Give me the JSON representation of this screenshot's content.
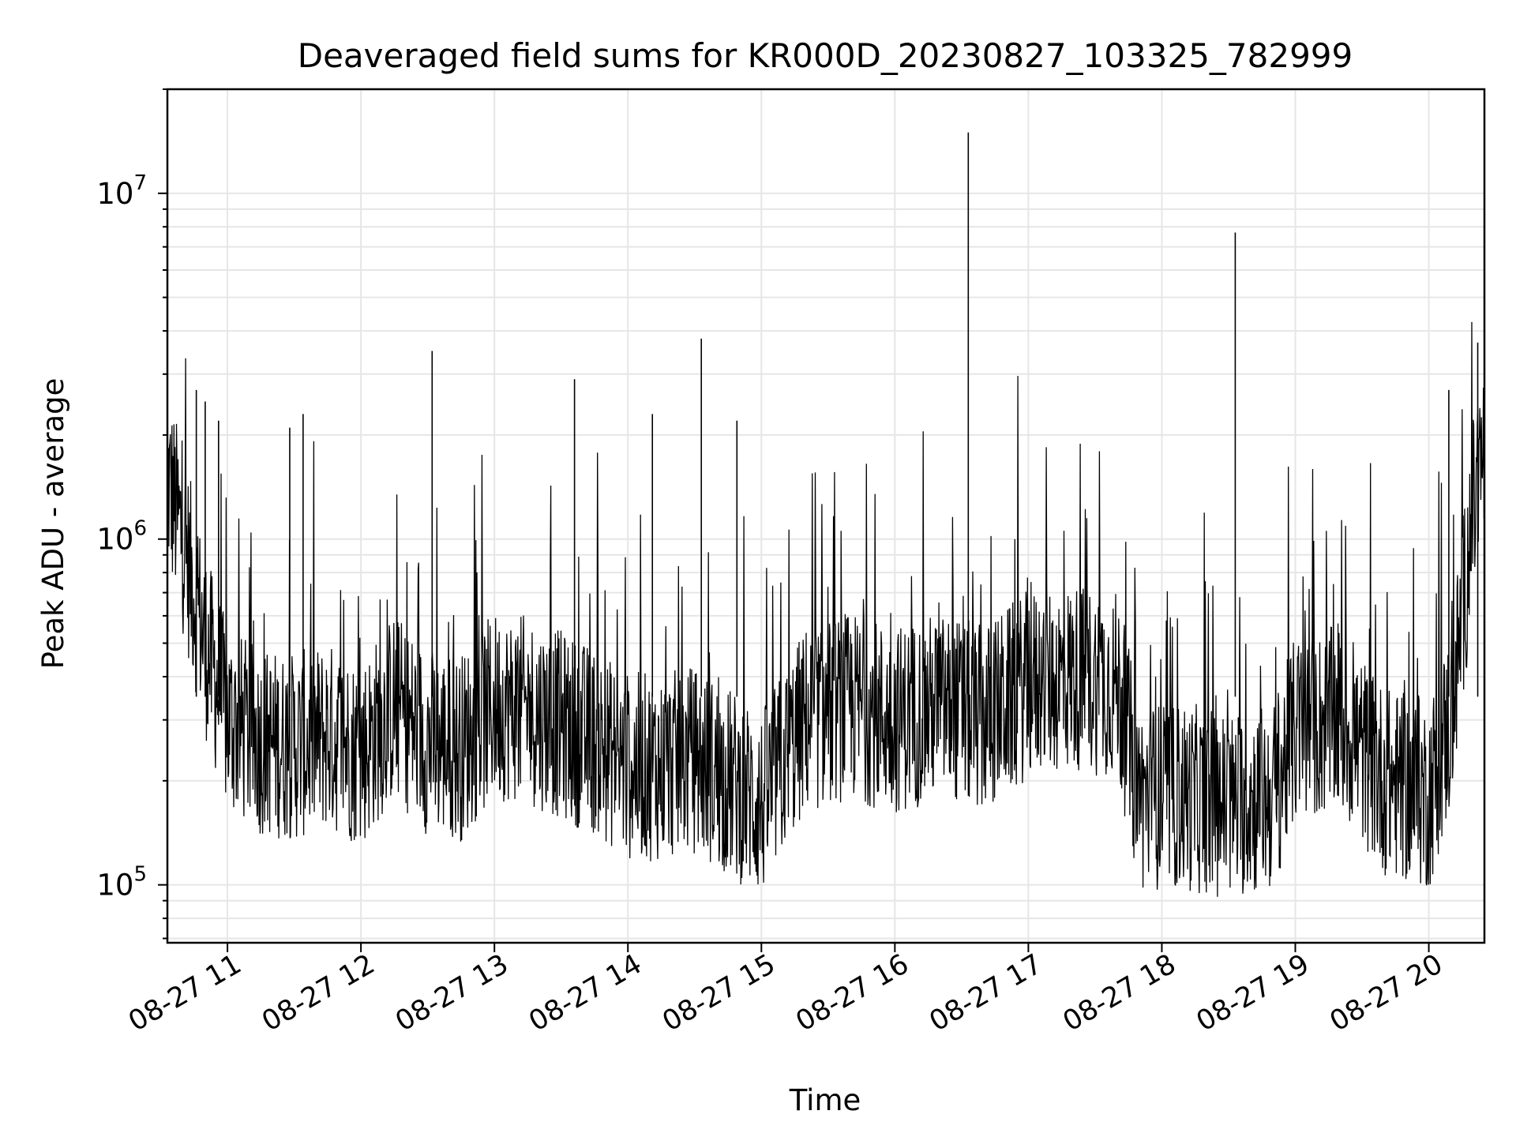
{
  "chart_data": {
    "type": "line",
    "title": "Deaveraged field sums for KR000D_20230827_103325_782999",
    "xlabel": "Time",
    "ylabel": "Peak ADU - average",
    "yscale": "log",
    "ylim": [
      68000,
      20000000
    ],
    "xlim": [
      "2023-08-27 10:33",
      "2023-08-27 20:25"
    ],
    "grid": true,
    "line_color": "#000000",
    "grid_color": "#e6e6e6",
    "x_ticks": [
      "2023-08-27 11:00",
      "2023-08-27 12:00",
      "2023-08-27 13:00",
      "2023-08-27 14:00",
      "2023-08-27 15:00",
      "2023-08-27 16:00",
      "2023-08-27 17:00",
      "2023-08-27 18:00",
      "2023-08-27 19:00",
      "2023-08-27 20:00"
    ],
    "x_tick_labels": [
      "08-27 11",
      "08-27 12",
      "08-27 13",
      "08-27 14",
      "08-27 15",
      "08-27 16",
      "08-27 17",
      "08-27 18",
      "08-27 19",
      "08-27 20"
    ],
    "y_ticks": [
      100000,
      1000000,
      10000000
    ],
    "y_tick_labels": [
      {
        "base": "10",
        "exp": "5"
      },
      {
        "base": "10",
        "exp": "6"
      },
      {
        "base": "10",
        "exp": "7"
      }
    ],
    "series": [
      {
        "x": [
          "2023-08-27 10:33",
          "2023-08-27 10:40",
          "2023-08-27 10:50",
          "2023-08-27 11:00",
          "2023-08-27 11:15",
          "2023-08-27 11:30",
          "2023-08-27 11:45",
          "2023-08-27 12:00",
          "2023-08-27 12:15",
          "2023-08-27 12:30",
          "2023-08-27 12:45",
          "2023-08-27 13:00",
          "2023-08-27 13:15",
          "2023-08-27 13:30",
          "2023-08-27 13:45",
          "2023-08-27 14:00",
          "2023-08-27 14:15",
          "2023-08-27 14:30",
          "2023-08-27 14:45",
          "2023-08-27 15:00",
          "2023-08-27 15:20",
          "2023-08-27 15:40",
          "2023-08-27 16:00",
          "2023-08-27 16:20",
          "2023-08-27 16:40",
          "2023-08-27 17:00",
          "2023-08-27 17:20",
          "2023-08-27 17:40",
          "2023-08-27 17:50",
          "2023-08-27 18:10",
          "2023-08-27 18:30",
          "2023-08-27 18:50",
          "2023-08-27 19:00",
          "2023-08-27 19:20",
          "2023-08-27 19:40",
          "2023-08-27 20:00",
          "2023-08-27 20:10",
          "2023-08-27 20:20",
          "2023-08-27 20:25"
        ],
        "y": [
          1500000,
          1000000,
          500000,
          300000,
          260000,
          250000,
          270000,
          240000,
          330000,
          260000,
          250000,
          330000,
          320000,
          290000,
          260000,
          220000,
          220000,
          230000,
          200000,
          170000,
          300000,
          330000,
          300000,
          330000,
          300000,
          380000,
          400000,
          380000,
          180000,
          180000,
          170000,
          180000,
          280000,
          300000,
          200000,
          180000,
          300000,
          1200000,
          1800000
        ]
      }
    ],
    "spikes": [
      {
        "x": "2023-08-27 10:33",
        "y": 3300000
      },
      {
        "x": "2023-08-27 10:46",
        "y": 2700000
      },
      {
        "x": "2023-08-27 10:50",
        "y": 2500000
      },
      {
        "x": "2023-08-27 10:56",
        "y": 2200000
      },
      {
        "x": "2023-08-27 11:28",
        "y": 2100000
      },
      {
        "x": "2023-08-27 11:34",
        "y": 2300000
      },
      {
        "x": "2023-08-27 12:32",
        "y": 3500000
      },
      {
        "x": "2023-08-27 13:36",
        "y": 2900000
      },
      {
        "x": "2023-08-27 14:11",
        "y": 2300000
      },
      {
        "x": "2023-08-27 14:33",
        "y": 3800000
      },
      {
        "x": "2023-08-27 14:49",
        "y": 2200000
      },
      {
        "x": "2023-08-27 16:33",
        "y": 15000000
      },
      {
        "x": "2023-08-27 18:33",
        "y": 7700000
      },
      {
        "x": "2023-08-27 20:09",
        "y": 2700000
      },
      {
        "x": "2023-08-27 20:22",
        "y": 3700000
      }
    ]
  }
}
